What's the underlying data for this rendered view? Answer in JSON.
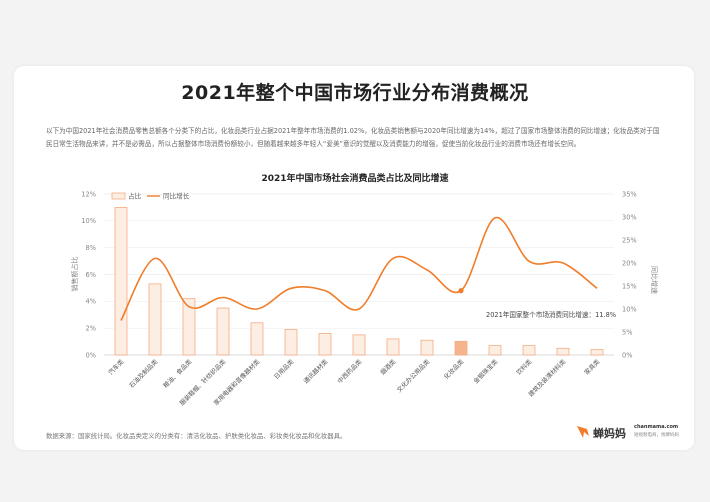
{
  "page": {
    "title": "2021年整个中国市场行业分布消费概况",
    "paragraph": "以下为中国2021年社会消费品零售总额各个分类下的占比，化妆品类行业占据2021年整年市场消费的1.02%，化妆品类销售额与2020年同比增速为14%，超过了国家市场整体消费的同比增速；化妆品类对于国民日常生活物品来讲，并不是必需品，所以占据整体市场消费份额较小，但随着越来越多年轻人“爱美”意识的觉醒以及消费能力的增强，促使当前化妆品行业的消费市场还有增长空间。",
    "footnote": "数据来源：国家统计局。化妆品类定义的分类有：清洁化妆品、护肤类化妆品、彩妆类化妆品和化妆器具。",
    "logo": {
      "name": "蝉妈妈",
      "url": "chanmama.com",
      "tagline": "短视频电商，找蝉妈妈"
    }
  },
  "chart_data": {
    "type": "bar+line",
    "title": "2021年中国市场社会消费品类占比及同比增速",
    "categories": [
      "汽车类",
      "石油及制品类",
      "粮油、食品类",
      "服装鞋帽、针纺织品类",
      "家用电器和音像器材类",
      "日用品类",
      "通讯器材类",
      "中西药品类",
      "烟酒类",
      "文化办公用品类",
      "化妆品类",
      "金银珠宝类",
      "饮料类",
      "建筑及装潢材料类",
      "家具类"
    ],
    "series": [
      {
        "name": "占比",
        "type": "bar",
        "axis": "left",
        "color": "#f4ab82",
        "fill": "#fdeee4",
        "values": [
          11.0,
          5.3,
          4.2,
          3.5,
          2.4,
          1.9,
          1.6,
          1.5,
          1.2,
          1.1,
          1.02,
          0.7,
          0.7,
          0.5,
          0.4
        ]
      },
      {
        "name": "同比增长",
        "type": "line",
        "axis": "right",
        "color": "#f07d2a",
        "values": [
          7.5,
          21.0,
          10.5,
          12.5,
          10.0,
          14.5,
          14.0,
          10.0,
          21.0,
          18.5,
          14.0,
          29.8,
          20.4,
          20.0,
          14.5
        ]
      }
    ],
    "highlight_index": 10,
    "left_axis": {
      "ylim": [
        0,
        12
      ],
      "ticks": [
        "0%",
        "2%",
        "4%",
        "6%",
        "8%",
        "10%",
        "12%"
      ],
      "label": "销售额占比"
    },
    "right_axis": {
      "ylim": [
        0,
        35
      ],
      "ticks": [
        "0%",
        "5%",
        "10%",
        "15%",
        "20%",
        "25%",
        "30%",
        "35%"
      ],
      "label": "同比增速"
    },
    "legend": {
      "position": "top-left"
    },
    "annotation": {
      "text": "2021年国家整个市场消费同比增速：11.8%",
      "value": 11.8
    }
  }
}
